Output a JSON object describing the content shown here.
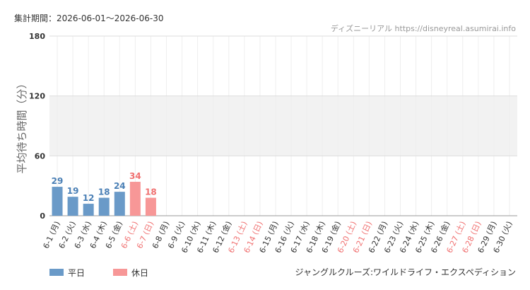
{
  "chart_data": {
    "type": "bar",
    "title": "集計期間：2026-06-01～2026-06-30",
    "source": "ディズニーリアル https://disneyreal.asumirai.info",
    "y_label": "平均待ち時間（分）",
    "caption": "ジャングルクルーズ:ワイルドライフ・エクスペディション",
    "categories": [
      "6-1 (月)",
      "6-2 (火)",
      "6-3 (水)",
      "6-4 (木)",
      "6-5 (金)",
      "6-6 (土)",
      "6-7 (日)",
      "6-8 (月)",
      "6-9 (火)",
      "6-10 (水)",
      "6-11 (木)",
      "6-12 (金)",
      "6-13 (土)",
      "6-14 (日)",
      "6-15 (月)",
      "6-16 (火)",
      "6-17 (水)",
      "6-18 (木)",
      "6-19 (金)",
      "6-20 (土)",
      "6-21 (日)",
      "6-22 (月)",
      "6-23 (火)",
      "6-24 (水)",
      "6-25 (木)",
      "6-26 (金)",
      "6-27 (土)",
      "6-28 (日)",
      "6-29 (月)",
      "6-30 (火)"
    ],
    "category_colors": [
      "#333",
      "#333",
      "#333",
      "#333",
      "#333",
      "#f07070",
      "#f07070",
      "#333",
      "#333",
      "#333",
      "#333",
      "#333",
      "#f07070",
      "#f07070",
      "#333",
      "#333",
      "#333",
      "#333",
      "#333",
      "#f07070",
      "#f07070",
      "#333",
      "#333",
      "#333",
      "#333",
      "#333",
      "#f07070",
      "#f07070",
      "#333",
      "#333"
    ],
    "series": [
      {
        "name": "平日",
        "color": "#6a9ac8",
        "label_color": "#4a7fb5",
        "values": [
          29,
          19,
          12,
          18,
          24,
          null,
          null,
          null,
          null,
          null,
          null,
          null,
          null,
          null,
          null,
          null,
          null,
          null,
          null,
          null,
          null,
          null,
          null,
          null,
          null,
          null,
          null,
          null,
          null,
          null
        ]
      },
      {
        "name": "休日",
        "color": "#f79797",
        "label_color": "#f07070",
        "values": [
          null,
          null,
          null,
          null,
          null,
          34,
          18,
          null,
          null,
          null,
          null,
          null,
          null,
          null,
          null,
          null,
          null,
          null,
          null,
          null,
          null,
          null,
          null,
          null,
          null,
          null,
          null,
          null,
          null,
          null
        ]
      }
    ],
    "ylim": [
      0,
      180
    ],
    "yticks": [
      0,
      60,
      120,
      180
    ],
    "band": [
      60,
      120
    ],
    "grid": true
  }
}
